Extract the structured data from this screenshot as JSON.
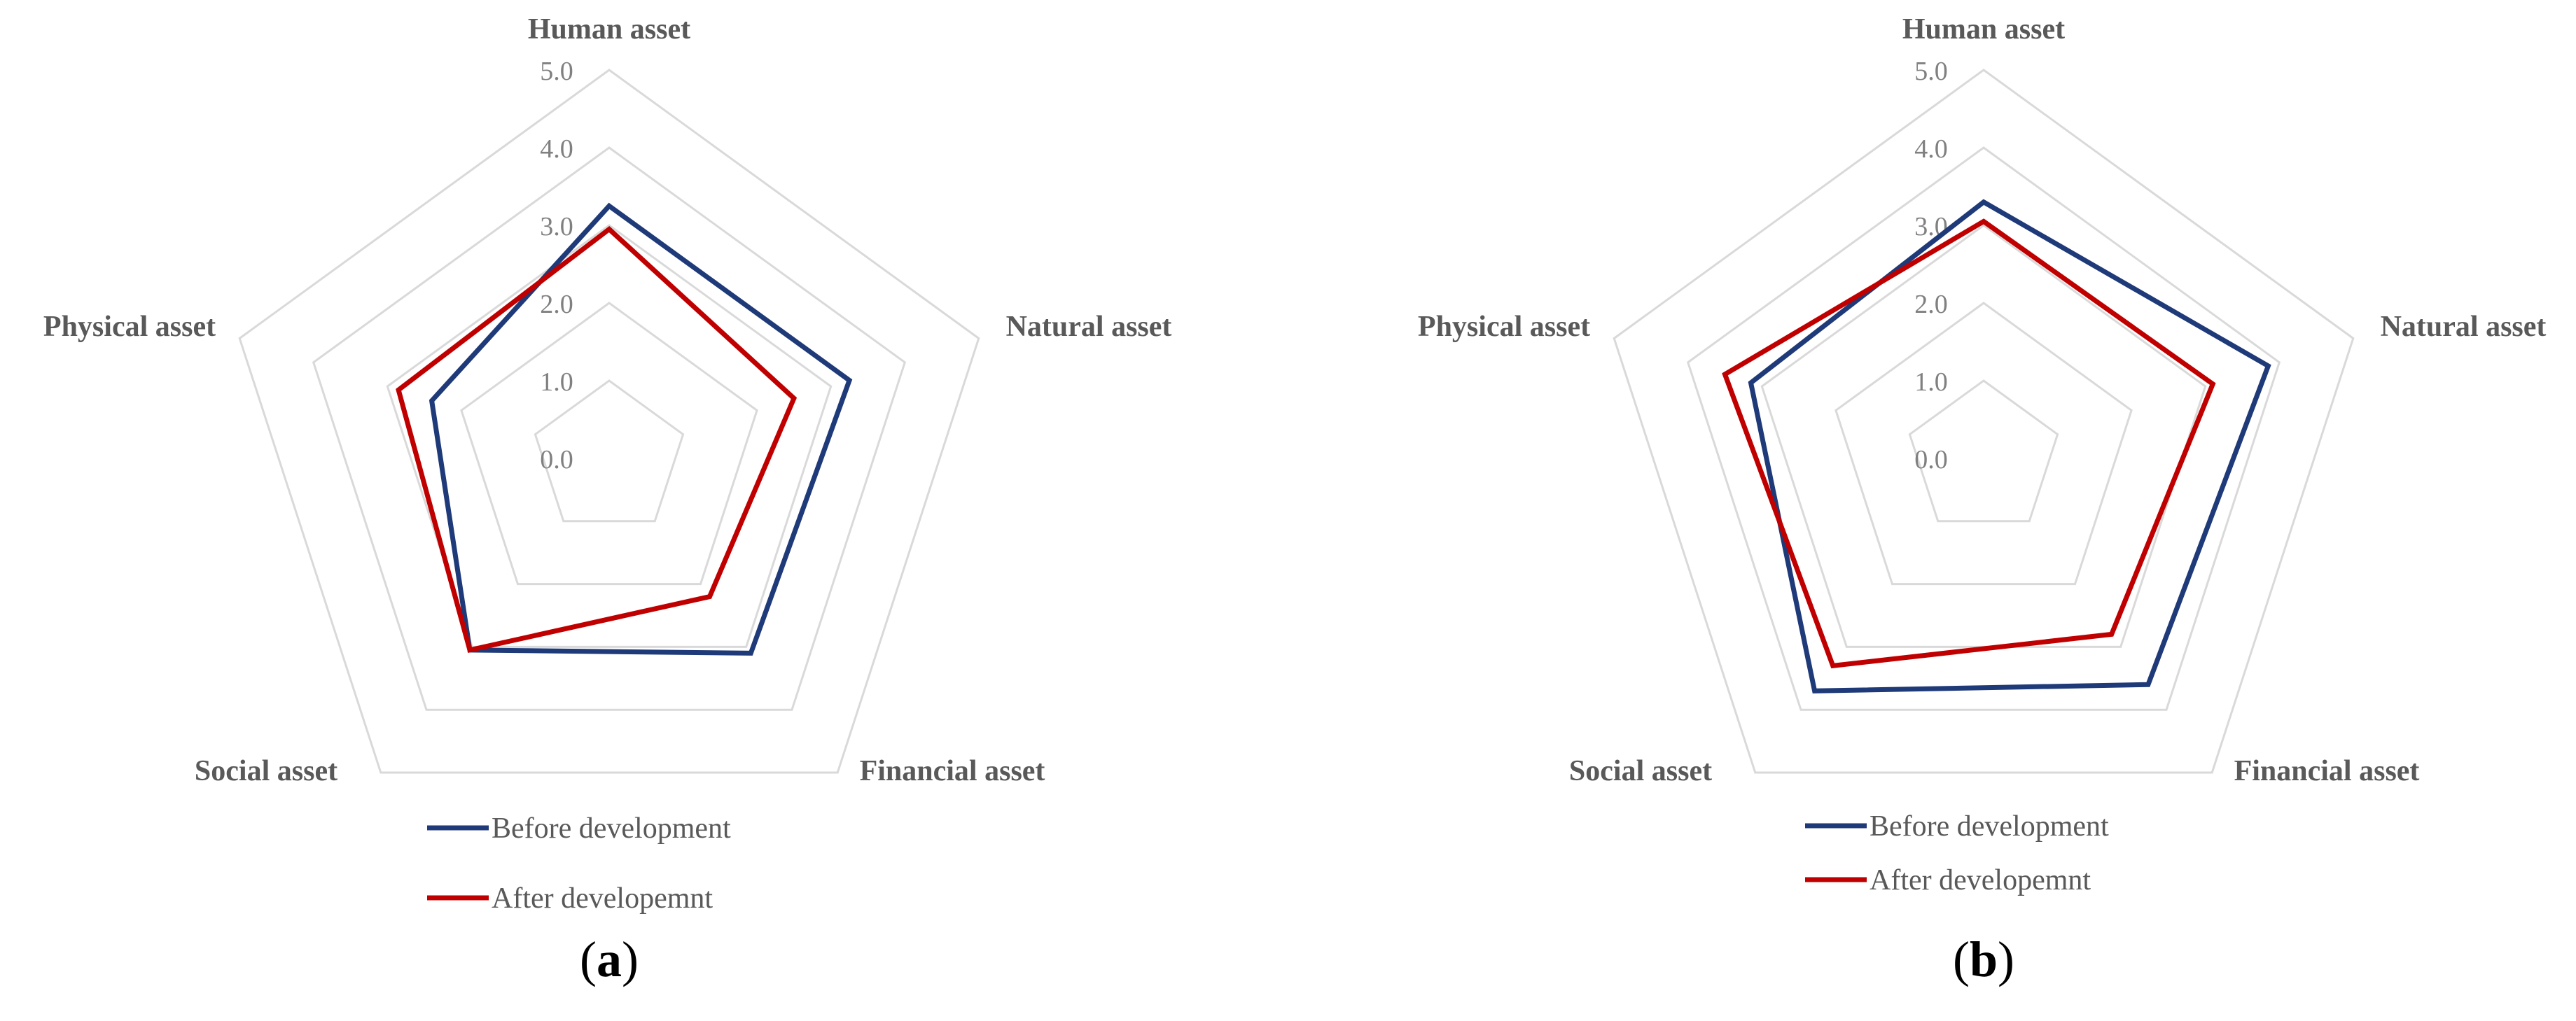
{
  "chart_data": [
    {
      "type": "radar",
      "panel_label": "a",
      "categories": [
        "Human asset",
        "Natural asset",
        "Financial asset",
        "Social asset",
        "Physical asset"
      ],
      "ticks": [
        "0.0",
        "1.0",
        "2.0",
        "3.0",
        "4.0",
        "5.0"
      ],
      "rlim": [
        0,
        5
      ],
      "grid": true,
      "legend_position": "bottom",
      "series": [
        {
          "name": "Before development",
          "color": "#1f3a78",
          "values": [
            3.25,
            3.25,
            3.1,
            3.05,
            2.4
          ]
        },
        {
          "name": "After developemnt",
          "color": "#c00000",
          "values": [
            2.95,
            2.5,
            2.2,
            3.05,
            2.85
          ]
        }
      ]
    },
    {
      "type": "radar",
      "panel_label": "b",
      "categories": [
        "Human asset",
        "Natural asset",
        "Financial asset",
        "Social asset",
        "Physical asset"
      ],
      "ticks": [
        "0.0",
        "1.0",
        "2.0",
        "3.0",
        "4.0",
        "5.0"
      ],
      "rlim": [
        0,
        5
      ],
      "grid": true,
      "legend_position": "bottom",
      "series": [
        {
          "name": "Before development",
          "color": "#1f3a78",
          "values": [
            3.3,
            3.85,
            3.6,
            3.7,
            3.15
          ]
        },
        {
          "name": "After developemnt",
          "color": "#c00000",
          "values": [
            3.05,
            3.1,
            2.8,
            3.3,
            3.5
          ]
        }
      ]
    }
  ]
}
